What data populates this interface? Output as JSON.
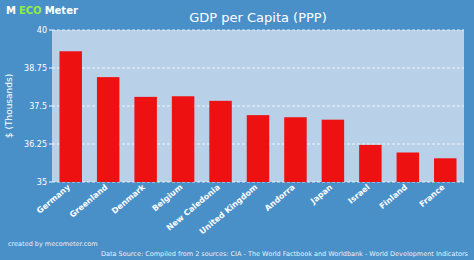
{
  "chart_data": {
    "type": "bar",
    "title": "GDP per Capita (PPP)",
    "y_label": "$ (Thousands)",
    "categories": [
      "Germany",
      "Greenland",
      "Denmark",
      "Belgium",
      "New Caledonia",
      "United Kingdom",
      "Andorra",
      "Japan",
      "Israel",
      "Finland",
      "France"
    ],
    "values": [
      39.3,
      38.45,
      37.8,
      37.82,
      37.67,
      37.2,
      37.13,
      37.05,
      36.22,
      35.97,
      35.78
    ],
    "color": "#ee1111",
    "ylim": [
      35,
      40
    ],
    "yticks": [
      35,
      36.25,
      37.5,
      38.75,
      40
    ],
    "grid": true,
    "annotations": [
      "created by mecometer.com",
      "Data Source: Compiled from 2 sources: CIA - The World Factbook and Worldbank - World Development Indicators",
      "M",
      "ECO",
      "Meter"
    ]
  }
}
